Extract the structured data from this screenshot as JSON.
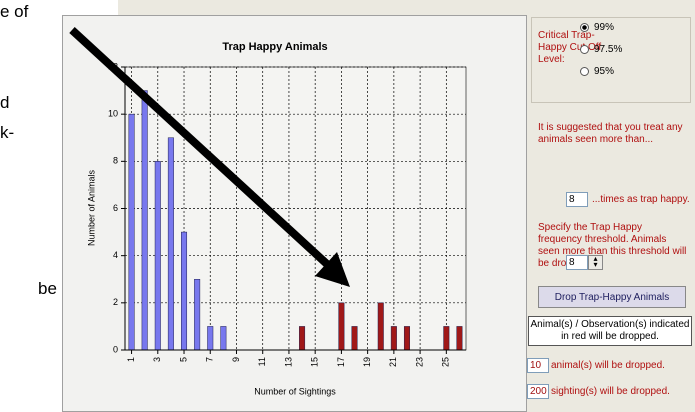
{
  "left_text": [
    "e of",
    "d",
    "k-",
    "be"
  ],
  "chart_data": {
    "type": "bar",
    "title": "Trap Happy Animals",
    "x_label": "Number of Sightings",
    "y_label": "Number of Animals",
    "x": [
      1,
      2,
      3,
      4,
      5,
      6,
      7,
      8,
      9,
      10,
      11,
      12,
      13,
      14,
      15,
      16,
      17,
      18,
      19,
      20,
      21,
      22,
      23,
      24,
      25,
      26
    ],
    "values": [
      10,
      11,
      8,
      9,
      5,
      3,
      1,
      1,
      0,
      0,
      0,
      0,
      0,
      1,
      0,
      0,
      2,
      1,
      0,
      2,
      1,
      1,
      0,
      0,
      1,
      1
    ],
    "xlim": [
      0.5,
      26.5
    ],
    "xticks": [
      1,
      3,
      5,
      7,
      9,
      11,
      13,
      15,
      17,
      19,
      21,
      23,
      25
    ],
    "ylim": [
      0,
      12
    ],
    "yticks": [
      0,
      2,
      4,
      6,
      8,
      10,
      12
    ],
    "grid": true,
    "color": "#7878ee",
    "drop_color": "#a01818"
  },
  "panel": {
    "cutoff_label": "Critical Trap-Happy Cut Off Level:",
    "options": [
      "99%",
      "97.5%",
      "95%"
    ],
    "selected": 0,
    "suggest_text": "It is suggested that you treat any animals seen more than...",
    "suggest_value": 8,
    "suggest_suffix": "...times as trap happy.",
    "threshold_text": "Specify the Trap Happy frequency threshold. Animals seen more than this threshold will be dropped:",
    "threshold": 8,
    "button": "Drop Trap-Happy Animals",
    "note": "Animal(s) / Observation(s) indicated in red will be dropped.",
    "animals_dropped": 10,
    "animals_text": "animal(s) will be dropped.",
    "sightings_dropped": 200,
    "sightings_text": "sighting(s) will be dropped."
  }
}
